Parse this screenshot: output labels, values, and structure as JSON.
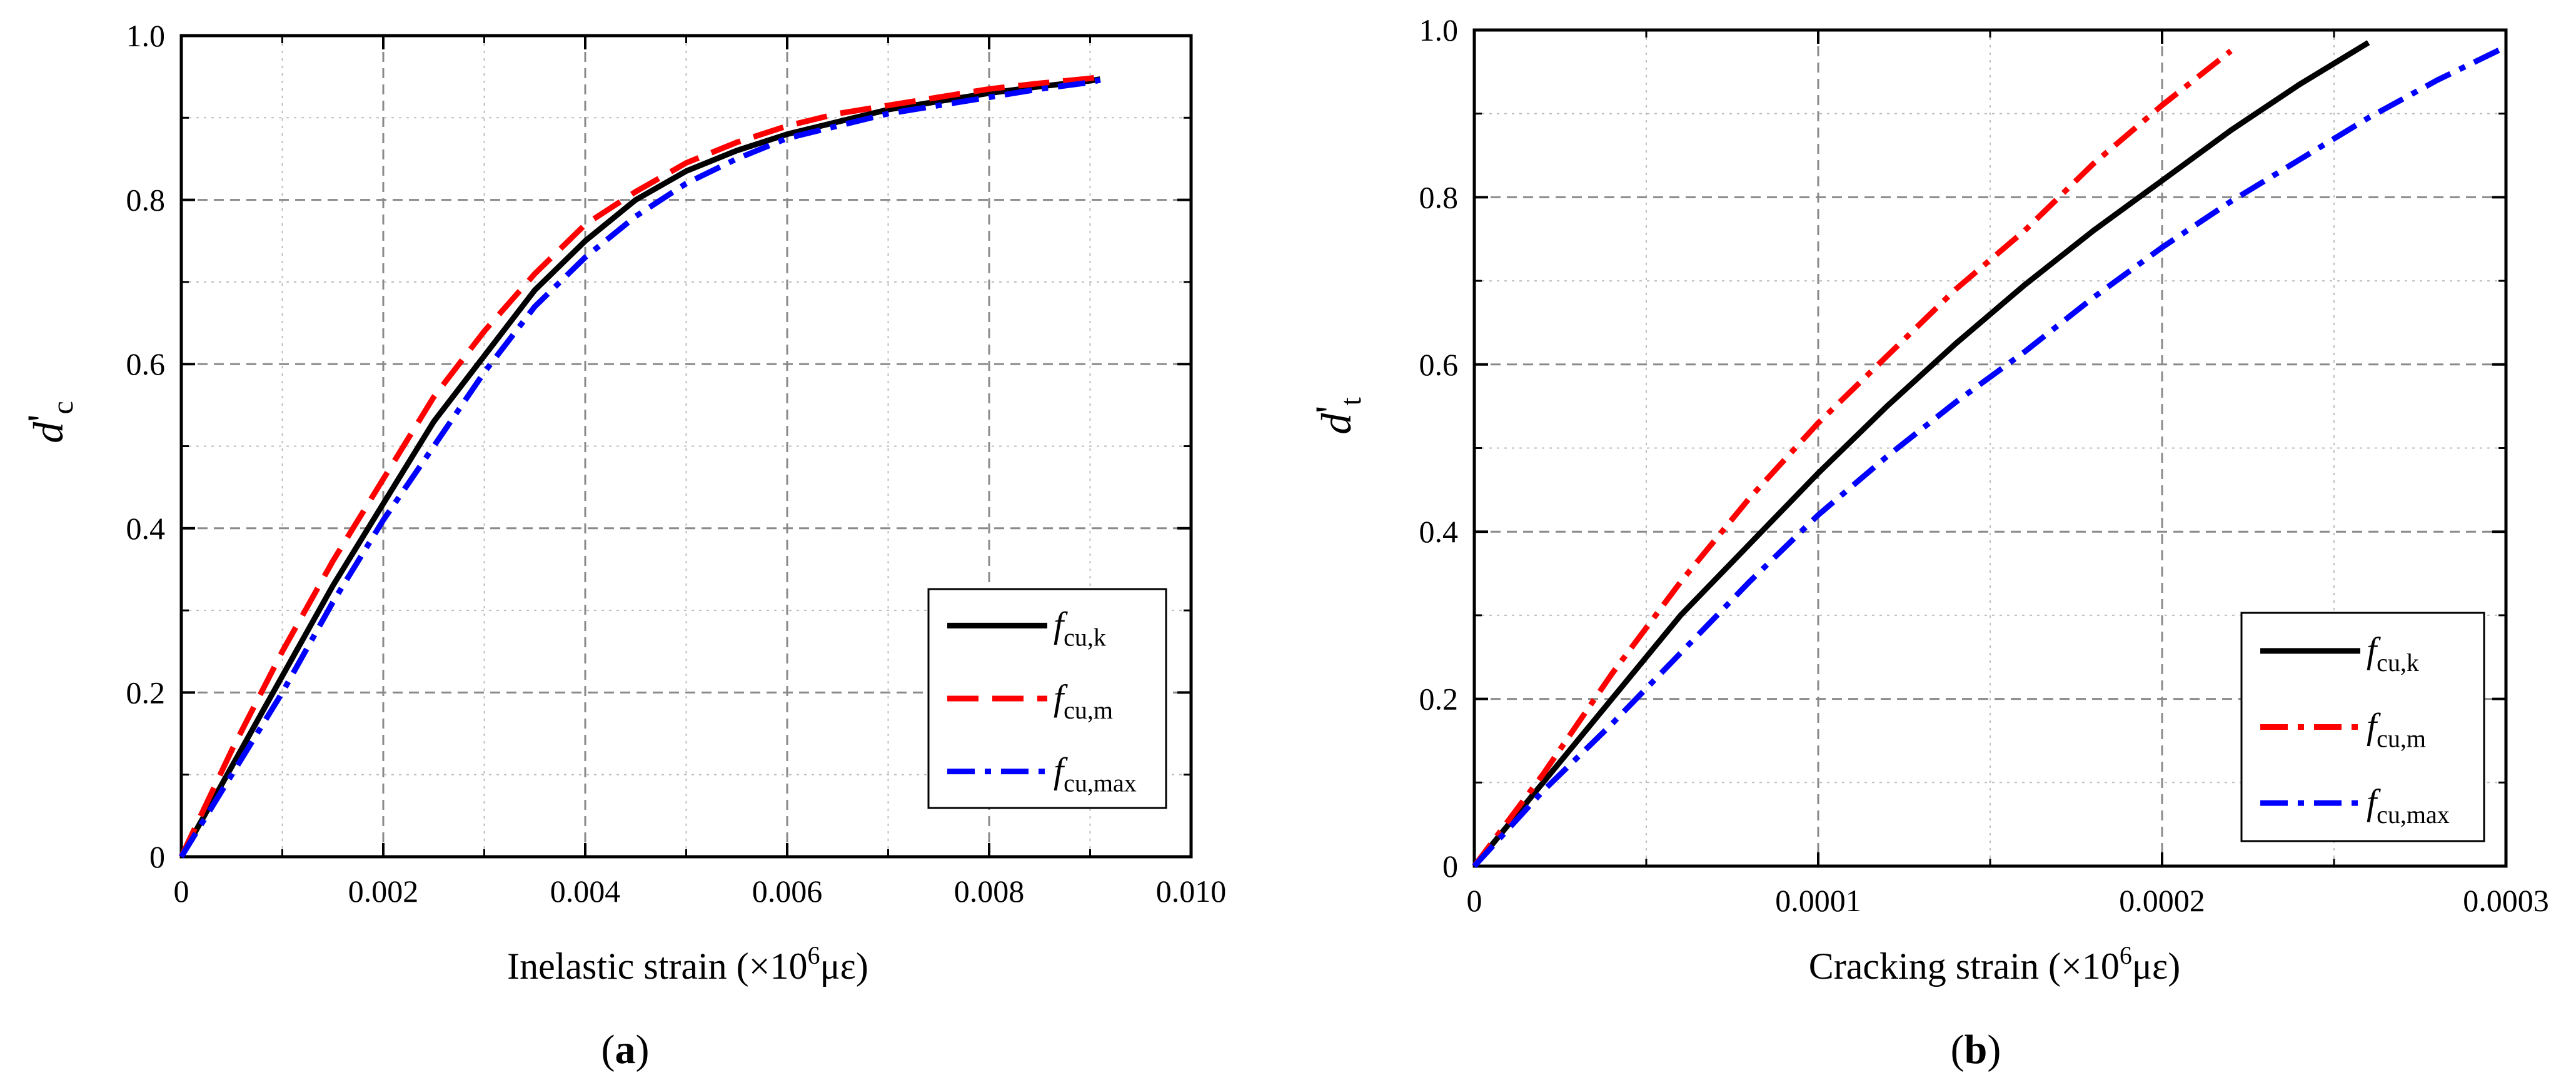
{
  "chart_data": [
    {
      "id": "a",
      "type": "line",
      "caption_letter": "a",
      "caption_open": "(",
      "caption_close": ")",
      "xlabel": "Inelastic strain (×10",
      "xlabel_sup": "6",
      "xlabel_tail": "με)",
      "ylabel": "d",
      "ylabel_prime": "'",
      "ylabel_sub": "c",
      "xlim": [
        0,
        0.01
      ],
      "ylim": [
        0,
        1.0
      ],
      "xticks": [
        0,
        0.002,
        0.004,
        0.006,
        0.008,
        0.01
      ],
      "xtick_labels": [
        "0",
        "0.002",
        "0.004",
        "0.006",
        "0.008",
        "0.010"
      ],
      "yticks": [
        0,
        0.2,
        0.4,
        0.6,
        0.8,
        1.0
      ],
      "ytick_labels": [
        "0",
        "0.2",
        "0.4",
        "0.6",
        "0.8",
        "1.0"
      ],
      "grid": true,
      "legend_position": "bottom-right",
      "series": [
        {
          "key": "k",
          "name": "f",
          "sub": "cu,k",
          "color": "#000000",
          "dash": "solid",
          "x": [
            0,
            0.0005,
            0.001,
            0.0015,
            0.002,
            0.0025,
            0.003,
            0.0035,
            0.004,
            0.0045,
            0.005,
            0.0055,
            0.006,
            0.0065,
            0.007,
            0.0075,
            0.008,
            0.0085,
            0.009,
            0.0091
          ],
          "y": [
            0,
            0.11,
            0.22,
            0.33,
            0.43,
            0.53,
            0.61,
            0.69,
            0.75,
            0.8,
            0.835,
            0.86,
            0.88,
            0.895,
            0.91,
            0.92,
            0.93,
            0.938,
            0.945,
            0.947
          ]
        },
        {
          "key": "m",
          "name": "f",
          "sub": "cu,m",
          "color": "#ff0000",
          "dash": "dash",
          "x": [
            0,
            0.0005,
            0.001,
            0.0015,
            0.002,
            0.0025,
            0.003,
            0.0035,
            0.004,
            0.0045,
            0.005,
            0.0055,
            0.006,
            0.0065,
            0.007,
            0.0075,
            0.008,
            0.0085,
            0.009,
            0.0091
          ],
          "y": [
            0,
            0.13,
            0.25,
            0.36,
            0.46,
            0.56,
            0.64,
            0.71,
            0.77,
            0.81,
            0.845,
            0.87,
            0.89,
            0.905,
            0.915,
            0.925,
            0.935,
            0.942,
            0.948,
            0.95
          ]
        },
        {
          "key": "max",
          "name": "f",
          "sub": "cu,max",
          "color": "#0000ff",
          "dash": "dashdot",
          "x": [
            0,
            0.0005,
            0.001,
            0.0015,
            0.002,
            0.0025,
            0.003,
            0.0035,
            0.004,
            0.0045,
            0.005,
            0.0055,
            0.006,
            0.0065,
            0.007,
            0.0075,
            0.008,
            0.0085,
            0.009,
            0.0091
          ],
          "y": [
            0,
            0.1,
            0.2,
            0.31,
            0.41,
            0.5,
            0.59,
            0.67,
            0.73,
            0.78,
            0.82,
            0.85,
            0.875,
            0.89,
            0.905,
            0.915,
            0.925,
            0.935,
            0.943,
            0.946
          ]
        }
      ]
    },
    {
      "id": "b",
      "type": "line",
      "caption_letter": "b",
      "caption_open": "(",
      "caption_close": ")",
      "xlabel": "Cracking strain (×10",
      "xlabel_sup": "6",
      "xlabel_tail": "με)",
      "ylabel": "d",
      "ylabel_prime": "'",
      "ylabel_sub": "t",
      "xlim": [
        0,
        0.0003
      ],
      "ylim": [
        0,
        1.0
      ],
      "xticks": [
        0,
        0.0001,
        0.0002,
        0.0003
      ],
      "xtick_labels": [
        "0",
        "0.0001",
        "0.0002",
        "0.0003"
      ],
      "yticks": [
        0,
        0.2,
        0.4,
        0.6,
        0.8,
        1.0
      ],
      "ytick_labels": [
        "0",
        "0.2",
        "0.4",
        "0.6",
        "0.8",
        "1.0"
      ],
      "grid": true,
      "legend_position": "bottom-right",
      "series": [
        {
          "key": "k",
          "name": "f",
          "sub": "cu,k",
          "color": "#000000",
          "dash": "solid",
          "x": [
            0,
            2e-05,
            4e-05,
            6e-05,
            8e-05,
            0.0001,
            0.00012,
            0.00014,
            0.00016,
            0.00018,
            0.0002,
            0.00022,
            0.00024,
            0.00026
          ],
          "y": [
            0,
            0.1,
            0.2,
            0.3,
            0.385,
            0.47,
            0.55,
            0.625,
            0.695,
            0.76,
            0.82,
            0.88,
            0.935,
            0.985
          ]
        },
        {
          "key": "m",
          "name": "f",
          "sub": "cu,m",
          "color": "#ff0000",
          "dash": "dashdot",
          "x": [
            0,
            2e-05,
            4e-05,
            6e-05,
            8e-05,
            0.0001,
            0.00012,
            0.00014,
            0.00016,
            0.00018,
            0.0002,
            0.00022
          ],
          "y": [
            0,
            0.11,
            0.23,
            0.34,
            0.44,
            0.53,
            0.61,
            0.69,
            0.76,
            0.84,
            0.91,
            0.975
          ]
        },
        {
          "key": "max",
          "name": "f",
          "sub": "cu,max",
          "color": "#0000ff",
          "dash": "dashdot",
          "x": [
            0,
            2e-05,
            4e-05,
            6e-05,
            8e-05,
            0.0001,
            0.00012,
            0.00014,
            0.00016,
            0.00018,
            0.0002,
            0.00022,
            0.00024,
            0.00026,
            0.00028,
            0.0003
          ],
          "y": [
            0,
            0.09,
            0.17,
            0.255,
            0.34,
            0.42,
            0.49,
            0.555,
            0.615,
            0.68,
            0.74,
            0.795,
            0.845,
            0.895,
            0.94,
            0.98
          ]
        }
      ]
    }
  ]
}
